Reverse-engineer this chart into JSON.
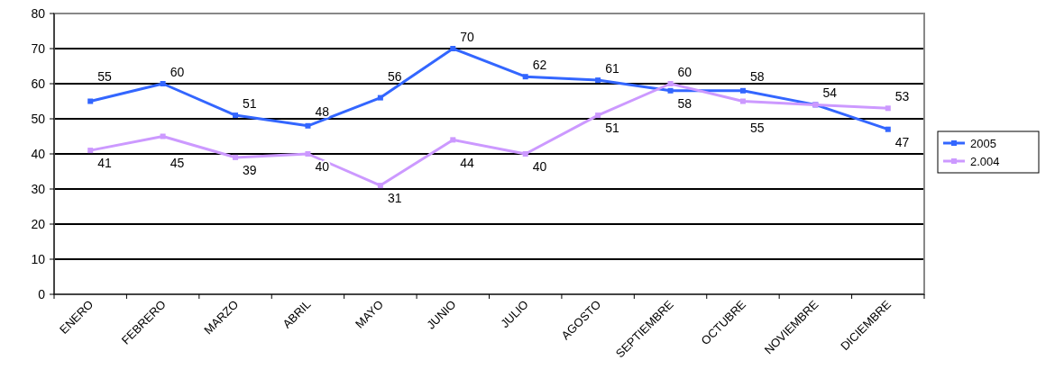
{
  "chart_data": {
    "type": "line",
    "categories": [
      "ENERO",
      "FEBRERO",
      "MARZO",
      "ABRIL",
      "MAYO",
      "JUNIO",
      "JULIO",
      "AGOSTO",
      "SEPTIEMBRE",
      "OCTUBRE",
      "NOVIEMBRE",
      "DICIEMBRE"
    ],
    "series": [
      {
        "name": "2005",
        "color": "#3366ff",
        "values": [
          55,
          60,
          51,
          48,
          56,
          70,
          62,
          61,
          58,
          58,
          54,
          47
        ],
        "value_labels": [
          "55",
          "60",
          "51",
          "48",
          "56",
          "70",
          "62",
          "61",
          "58",
          "58",
          "54",
          "47"
        ]
      },
      {
        "name": "2.004",
        "color": "#cc99ff",
        "values": [
          41,
          45,
          39,
          40,
          31,
          44,
          40,
          51,
          60,
          55,
          54,
          53
        ],
        "value_labels": [
          "41",
          "45",
          "39",
          "40",
          "31",
          "44",
          "40",
          "51",
          "60",
          "55",
          null,
          "53"
        ]
      }
    ],
    "ylim": [
      0,
      80
    ],
    "yticks": [
      0,
      10,
      20,
      30,
      40,
      50,
      60,
      70,
      80
    ],
    "grid": "y",
    "legend": "right",
    "marker": "square",
    "line_style": "solid"
  }
}
